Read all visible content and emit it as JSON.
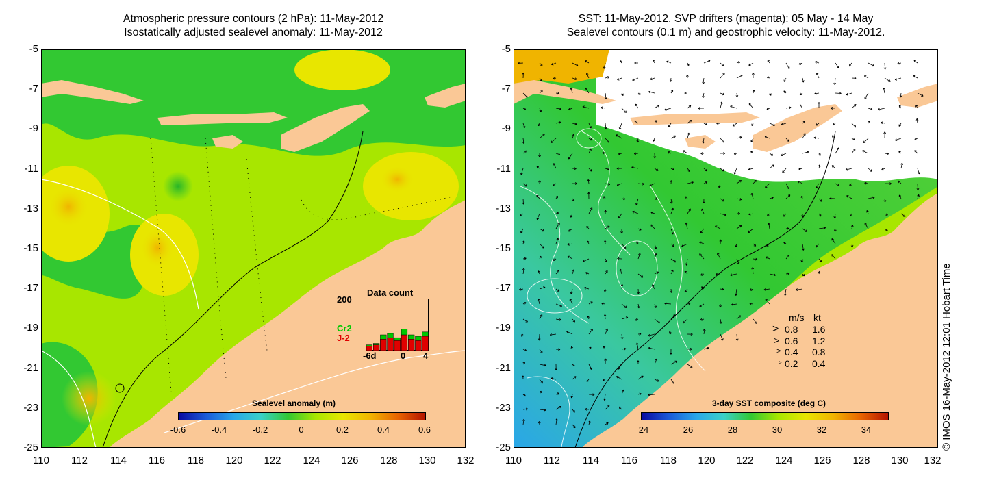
{
  "left_panel": {
    "title_line1": "Atmospheric pressure contours (2 hPa): 11-May-2012",
    "title_line2": "Isostatically adjusted sealevel anomaly: 11-May-2012",
    "y_ticks": [
      "-5",
      "-7",
      "-9",
      "-11",
      "-13",
      "-15",
      "-17",
      "-19",
      "-21",
      "-23",
      "-25"
    ],
    "x_ticks": [
      "110",
      "112",
      "114",
      "116",
      "118",
      "120",
      "122",
      "124",
      "126",
      "128",
      "130",
      "132"
    ],
    "colorbar": {
      "label": "Sealevel anomaly (m)",
      "ticks": [
        "-0.6",
        "-0.4",
        "-0.2",
        "0",
        "0.2",
        "0.4",
        "0.6"
      ],
      "colors": [
        "#0a0aa0",
        "#1a5ad8",
        "#2aa6e8",
        "#3ad0c8",
        "#32c832",
        "#a8e600",
        "#e8e600",
        "#f0b400",
        "#e86400",
        "#b41400"
      ]
    },
    "inset": {
      "title": "Data count",
      "y_label": "200",
      "x_ticks": [
        "-6d",
        "0",
        "4"
      ],
      "series": [
        {
          "name": "Cr2",
          "color": "#00c800",
          "values": [
            20,
            25,
            55,
            60,
            45,
            75,
            55,
            50,
            65
          ]
        },
        {
          "name": "J-2",
          "color": "#e00000",
          "values": [
            15,
            20,
            40,
            45,
            35,
            55,
            40,
            35,
            50
          ]
        }
      ]
    }
  },
  "right_panel": {
    "title_line1": "SST: 11-May-2012. SVP drifters (magenta): 05 May - 14 May",
    "title_line2": "Sealevel contours (0.1 m) and geostrophic velocity: 11-May-2012.",
    "y_ticks": [
      "-5",
      "-7",
      "-9",
      "-11",
      "-13",
      "-15",
      "-17",
      "-19",
      "-21",
      "-23",
      "-25"
    ],
    "x_ticks": [
      "110",
      "112",
      "114",
      "116",
      "118",
      "120",
      "122",
      "124",
      "126",
      "128",
      "130",
      "132"
    ],
    "colorbar": {
      "label": "3-day SST composite (deg C)",
      "ticks": [
        "24",
        "26",
        "28",
        "30",
        "32",
        "34"
      ],
      "colors": [
        "#0a0aa0",
        "#1a5ad8",
        "#2aa6e8",
        "#3ad0c8",
        "#32c832",
        "#a8e600",
        "#e8e600",
        "#f0b400",
        "#e86400",
        "#b41400"
      ]
    },
    "velocity_legend": {
      "header_ms": "m/s",
      "header_kt": "kt",
      "rows": [
        {
          "ms": "0.8",
          "kt": "1.6"
        },
        {
          "ms": "0.6",
          "kt": "1.2"
        },
        {
          "ms": "0.4",
          "kt": "0.8"
        },
        {
          "ms": "0.2",
          "kt": "0.4"
        }
      ]
    }
  },
  "copyright": "© IMOS 16-May-2012 12:01 Hobart Time",
  "colors": {
    "land": "#fac896",
    "ocean_green": "#3cc83c",
    "ocean_yellow": "#e8e800",
    "cloud": "#ffffff"
  }
}
